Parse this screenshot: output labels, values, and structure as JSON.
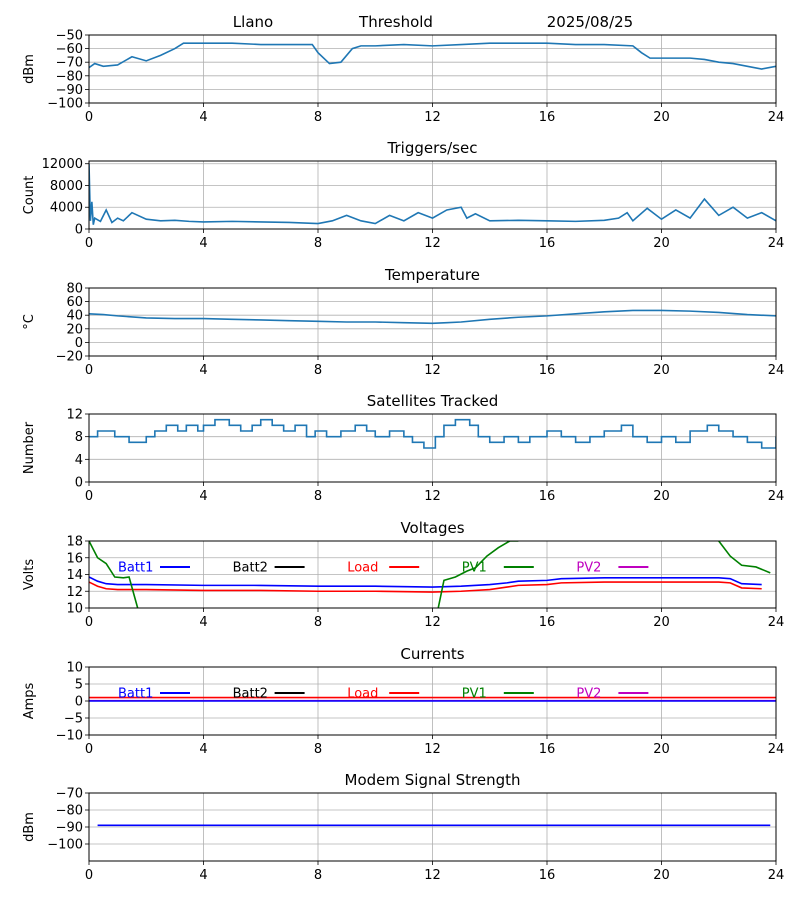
{
  "header": {
    "station": "Llano",
    "mode": "Threshold",
    "date": "2025/08/25"
  },
  "x_ticks": [
    "0",
    "4",
    "8",
    "12",
    "16",
    "20",
    "24"
  ],
  "chart_data": [
    {
      "id": "threshold",
      "type": "line",
      "title": "",
      "xlabel": "",
      "ylabel": "dBm",
      "xlim": [
        0,
        24
      ],
      "ylim": [
        -100,
        -50
      ],
      "yticks": [
        -50,
        -60,
        -70,
        -80,
        -90,
        -100
      ],
      "ytick_labels": [
        "−50",
        "−60",
        "−70",
        "−80",
        "−90",
        "−100"
      ],
      "grid": true,
      "series": [
        {
          "color": "#1f77b4",
          "x": [
            0,
            0.2,
            0.5,
            1,
            1.5,
            2,
            2.5,
            3,
            3.3,
            4,
            5,
            6,
            7,
            7.8,
            8,
            8.4,
            8.8,
            9.2,
            9.5,
            10,
            11,
            12,
            13,
            14,
            15,
            16,
            17,
            18,
            19,
            19.3,
            19.6,
            20,
            21,
            21.5,
            22,
            22.5,
            23,
            23.5,
            24
          ],
          "y": [
            -74,
            -71,
            -73,
            -72,
            -66,
            -69,
            -65,
            -60,
            -56,
            -56,
            -56,
            -57,
            -57,
            -57,
            -63,
            -71,
            -70,
            -60,
            -58,
            -58,
            -57,
            -58,
            -57,
            -56,
            -56,
            -56,
            -57,
            -57,
            -58,
            -63,
            -67,
            -67,
            -67,
            -68,
            -70,
            -71,
            -73,
            -75,
            -73
          ]
        }
      ]
    },
    {
      "id": "triggers",
      "type": "line",
      "title": "Triggers/sec",
      "xlabel": "",
      "ylabel": "Count",
      "xlim": [
        0,
        24
      ],
      "ylim": [
        0,
        12500
      ],
      "yticks": [
        0,
        4000,
        8000,
        12000
      ],
      "ytick_labels": [
        "0",
        "4000",
        "8000",
        "12000"
      ],
      "grid": true,
      "series": [
        {
          "color": "#1f77b4",
          "x": [
            0,
            0.05,
            0.1,
            0.15,
            0.2,
            0.4,
            0.6,
            0.8,
            1,
            1.2,
            1.5,
            2,
            2.5,
            3,
            3.5,
            4,
            5,
            6,
            7,
            8,
            8.5,
            9,
            9.5,
            10,
            10.5,
            11,
            11.5,
            12,
            12.5,
            13,
            13.2,
            13.5,
            14,
            15,
            16,
            17,
            18,
            18.5,
            18.8,
            19,
            19.5,
            20,
            20.5,
            21,
            21.5,
            22,
            22.5,
            23,
            23.5,
            24
          ],
          "y": [
            12000,
            1500,
            5000,
            800,
            2000,
            1400,
            3500,
            1200,
            2000,
            1500,
            3000,
            1800,
            1500,
            1600,
            1400,
            1300,
            1400,
            1300,
            1200,
            1000,
            1500,
            2500,
            1500,
            1000,
            2500,
            1500,
            3000,
            2000,
            3500,
            4000,
            2000,
            2800,
            1500,
            1600,
            1500,
            1400,
            1600,
            2000,
            3000,
            1500,
            3800,
            1800,
            3500,
            2000,
            5500,
            2500,
            4000,
            2000,
            3000,
            1500
          ]
        }
      ]
    },
    {
      "id": "temperature",
      "type": "line",
      "title": "Temperature",
      "xlabel": "",
      "ylabel": "°C",
      "xlim": [
        0,
        24
      ],
      "ylim": [
        -20,
        80
      ],
      "yticks": [
        -20,
        0,
        20,
        40,
        60,
        80
      ],
      "ytick_labels": [
        "−20",
        "0",
        "20",
        "40",
        "60",
        "80"
      ],
      "grid": true,
      "series": [
        {
          "color": "#1f77b4",
          "x": [
            0,
            0.5,
            1,
            2,
            3,
            4,
            5,
            6,
            7,
            8,
            9,
            10,
            11,
            12,
            12.5,
            13,
            14,
            15,
            16,
            17,
            18,
            19,
            20,
            21,
            22,
            23,
            24
          ],
          "y": [
            42,
            41,
            39,
            36,
            35,
            35,
            34,
            33,
            32,
            31,
            30,
            30,
            29,
            28,
            29,
            30,
            34,
            37,
            39,
            42,
            45,
            47,
            47,
            46,
            44,
            41,
            39
          ]
        }
      ]
    },
    {
      "id": "satellites",
      "type": "line",
      "title": "Satellites Tracked",
      "xlabel": "",
      "ylabel": "Number",
      "xlim": [
        0,
        24
      ],
      "ylim": [
        0,
        12
      ],
      "yticks": [
        0,
        4,
        8,
        12
      ],
      "ytick_labels": [
        "0",
        "4",
        "8",
        "12"
      ],
      "grid": true,
      "series": [
        {
          "color": "#1f77b4",
          "step": true,
          "x": [
            0,
            0.3,
            0.9,
            1.4,
            2,
            2.3,
            2.7,
            3.1,
            3.4,
            3.8,
            4,
            4.4,
            4.9,
            5.3,
            5.7,
            6,
            6.4,
            6.8,
            7.2,
            7.6,
            7.9,
            8.3,
            8.8,
            9.3,
            9.7,
            10,
            10.5,
            11,
            11.3,
            11.7,
            12.1,
            12.4,
            12.8,
            13.3,
            13.6,
            14,
            14.5,
            15,
            15.4,
            16,
            16.5,
            17,
            17.5,
            18,
            18.6,
            19,
            19.5,
            20,
            20.5,
            21,
            21.6,
            22,
            22.5,
            23,
            23.5,
            24
          ],
          "y": [
            8,
            9,
            8,
            7,
            8,
            9,
            10,
            9,
            10,
            9,
            10,
            11,
            10,
            9,
            10,
            11,
            10,
            9,
            10,
            8,
            9,
            8,
            9,
            10,
            9,
            8,
            9,
            8,
            7,
            6,
            8,
            10,
            11,
            10,
            8,
            7,
            8,
            7,
            8,
            9,
            8,
            7,
            8,
            9,
            10,
            8,
            7,
            8,
            7,
            9,
            10,
            9,
            8,
            7,
            6,
            8
          ]
        }
      ]
    },
    {
      "id": "voltages",
      "type": "line",
      "title": "Voltages",
      "xlabel": "",
      "ylabel": "Volts",
      "xlim": [
        0,
        24
      ],
      "ylim": [
        10,
        18
      ],
      "yticks": [
        10,
        12,
        14,
        16,
        18
      ],
      "ytick_labels": [
        "10",
        "12",
        "14",
        "16",
        "18"
      ],
      "grid": true,
      "legend": [
        {
          "name": "Batt1",
          "color": "#0000ff"
        },
        {
          "name": "Batt2",
          "color": "#000000"
        },
        {
          "name": "Load",
          "color": "#ff0000"
        },
        {
          "name": "PV1",
          "color": "#008000"
        },
        {
          "name": "PV2",
          "color": "#bf00bf"
        }
      ],
      "series": [
        {
          "name": "Batt1",
          "color": "#0000ff",
          "x": [
            0,
            0.3,
            0.6,
            1,
            2,
            4,
            6,
            8,
            10,
            12,
            13,
            14,
            14.6,
            15,
            16,
            16.5,
            18,
            20,
            22,
            22.4,
            22.8,
            23.5
          ],
          "y": [
            13.7,
            13.2,
            12.9,
            12.8,
            12.8,
            12.7,
            12.7,
            12.6,
            12.6,
            12.5,
            12.6,
            12.8,
            13.0,
            13.2,
            13.3,
            13.5,
            13.6,
            13.6,
            13.6,
            13.5,
            12.9,
            12.8
          ]
        },
        {
          "name": "Load",
          "color": "#ff0000",
          "x": [
            0,
            0.3,
            0.6,
            1,
            2,
            4,
            6,
            8,
            10,
            12,
            13,
            14,
            14.6,
            15,
            16,
            16.5,
            18,
            20,
            22,
            22.4,
            22.8,
            23.5
          ],
          "y": [
            13.1,
            12.6,
            12.3,
            12.2,
            12.2,
            12.1,
            12.1,
            12.0,
            12.0,
            11.9,
            12.0,
            12.2,
            12.5,
            12.7,
            12.8,
            13.0,
            13.1,
            13.1,
            13.1,
            13.0,
            12.4,
            12.3
          ]
        },
        {
          "name": "PV1",
          "color": "#008000",
          "x": [
            0,
            0.3,
            0.6,
            0.9,
            1.2,
            1.4,
            1.7
          ],
          "y": [
            18,
            16,
            15.3,
            13.7,
            13.6,
            13.7,
            10
          ]
        },
        {
          "name": "PV1",
          "color": "#008000",
          "x": [
            12.2,
            12.4,
            12.8,
            13.2,
            13.5,
            13.9,
            14.3,
            14.7,
            15.0
          ],
          "y": [
            10,
            13.3,
            13.7,
            14.4,
            14.8,
            16.2,
            17.2,
            18,
            18
          ]
        },
        {
          "name": "PV1",
          "color": "#008000",
          "x": [
            22.0,
            22.4,
            22.8,
            23.3,
            23.8
          ],
          "y": [
            18,
            16.2,
            15.1,
            14.9,
            14.2
          ]
        }
      ]
    },
    {
      "id": "currents",
      "type": "line",
      "title": "Currents",
      "xlabel": "",
      "ylabel": "Amps",
      "xlim": [
        0,
        24
      ],
      "ylim": [
        -10,
        10
      ],
      "yticks": [
        -10,
        -5,
        0,
        5,
        10
      ],
      "ytick_labels": [
        "−10",
        "−5",
        "0",
        "5",
        "10"
      ],
      "grid": true,
      "legend": [
        {
          "name": "Batt1",
          "color": "#0000ff"
        },
        {
          "name": "Batt2",
          "color": "#000000"
        },
        {
          "name": "Load",
          "color": "#ff0000"
        },
        {
          "name": "PV1",
          "color": "#008000"
        },
        {
          "name": "PV2",
          "color": "#bf00bf"
        }
      ],
      "series": [
        {
          "name": "Load",
          "color": "#ff0000",
          "x": [
            0,
            4,
            8,
            12,
            16,
            20,
            24
          ],
          "y": [
            1,
            1,
            1,
            1,
            1,
            1,
            1
          ]
        },
        {
          "name": "PV2",
          "color": "#bf00bf",
          "x": [
            0,
            4,
            8,
            12,
            16,
            20,
            24
          ],
          "y": [
            0.1,
            0.1,
            0.1,
            0.1,
            0.1,
            0.1,
            0.1
          ]
        },
        {
          "name": "Batt1",
          "color": "#0000ff",
          "x": [
            0,
            4,
            8,
            12,
            16,
            20,
            24
          ],
          "y": [
            0,
            0,
            0,
            0,
            0,
            0,
            0
          ]
        }
      ]
    },
    {
      "id": "modem",
      "type": "line",
      "title": "Modem Signal Strength",
      "xlabel": "",
      "ylabel": "dBm",
      "xlim": [
        0,
        24
      ],
      "ylim": [
        -110,
        -70
      ],
      "yticks": [
        -70,
        -80,
        -90,
        -100
      ],
      "ytick_labels": [
        "−70",
        "−80",
        "−90",
        "−100"
      ],
      "grid": true,
      "series": [
        {
          "color": "#0000ff",
          "x": [
            0.3,
            23.8
          ],
          "y": [
            -89,
            -89
          ]
        }
      ]
    }
  ]
}
